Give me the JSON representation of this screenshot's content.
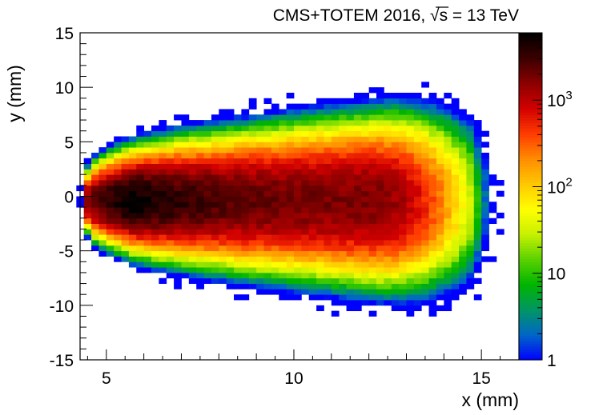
{
  "chart_data": {
    "type": "heatmap",
    "title": "CMS+TOTEM 2016, ",
    "title_sqrt_symbol": "√",
    "title_sqrt_arg": "s",
    "title_suffix": " = 13 TeV",
    "xlabel": "x (mm)",
    "ylabel": "y (mm)",
    "xlim": [
      4.3,
      16.0
    ],
    "ylim": [
      -15,
      15
    ],
    "x_ticks": [
      5,
      10,
      15
    ],
    "y_ticks": [
      -15,
      -10,
      -5,
      0,
      5,
      10,
      15
    ],
    "z_scale": "log",
    "zlim": [
      1,
      6000
    ],
    "colorbar_ticks": [
      {
        "value": 1,
        "base": "1",
        "exp": ""
      },
      {
        "value": 10,
        "base": "10",
        "exp": ""
      },
      {
        "value": 100,
        "base": "10",
        "exp": "2"
      },
      {
        "value": 1000,
        "base": "10",
        "exp": "3"
      }
    ],
    "colormap": [
      "#0000ff",
      "#0066c8",
      "#009664",
      "#00b400",
      "#5ad200",
      "#c8f000",
      "#ffff00",
      "#ffc800",
      "#ff8c00",
      "#ff3c00",
      "#d20000",
      "#8c0000",
      "#3c0000",
      "#000000"
    ],
    "bin_size": {
      "x": 0.2,
      "y": 0.5
    },
    "distribution": {
      "x_start": 4.4,
      "x_end": 14.6,
      "y_center": -0.4,
      "peak_x": 5.6,
      "peak_counts": 6000,
      "plateau_counts": 1700,
      "sigma_y_start": 1.0,
      "sigma_y_end": 3.1,
      "taper_x": 12.0
    }
  }
}
